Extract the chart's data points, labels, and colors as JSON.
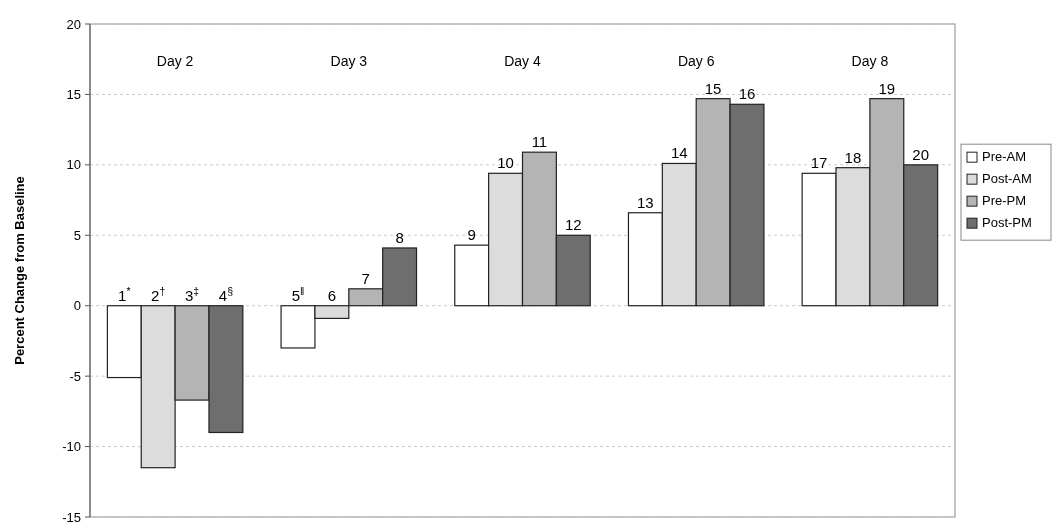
{
  "chart_data": {
    "type": "bar",
    "ylabel": "Percent Change from Baseline",
    "categories": [
      "Day 2",
      "Day 3",
      "Day 4",
      "Day 6",
      "Day 8"
    ],
    "series": [
      {
        "name": "Pre-AM",
        "color": "#ffffff",
        "values": [
          -5.1,
          -3.0,
          4.3,
          6.6,
          9.4
        ]
      },
      {
        "name": "Post-AM",
        "color": "#dcdcdc",
        "values": [
          -11.5,
          -0.9,
          9.4,
          10.1,
          9.8
        ]
      },
      {
        "name": "Pre-PM",
        "color": "#b4b4b4",
        "values": [
          -6.7,
          1.2,
          10.9,
          14.7,
          14.7
        ]
      },
      {
        "name": "Post-PM",
        "color": "#6e6e6e",
        "values": [
          -9.0,
          4.1,
          5.0,
          14.3,
          10.0
        ]
      }
    ],
    "annotations": [
      "1$^{*}$",
      "2$^{†}$",
      "3$^{‡}$",
      "4$^{§}$",
      "5$^{‖}$",
      "6",
      "7",
      "8",
      "9",
      "10",
      "11",
      "12",
      "13",
      "14",
      "15",
      "16",
      "17",
      "18",
      "19",
      "20"
    ],
    "ylim": [
      -15,
      20
    ],
    "yticks": [
      -15,
      -10,
      -5,
      0,
      5,
      10,
      15,
      20
    ],
    "grid": "y",
    "legend": "right"
  }
}
